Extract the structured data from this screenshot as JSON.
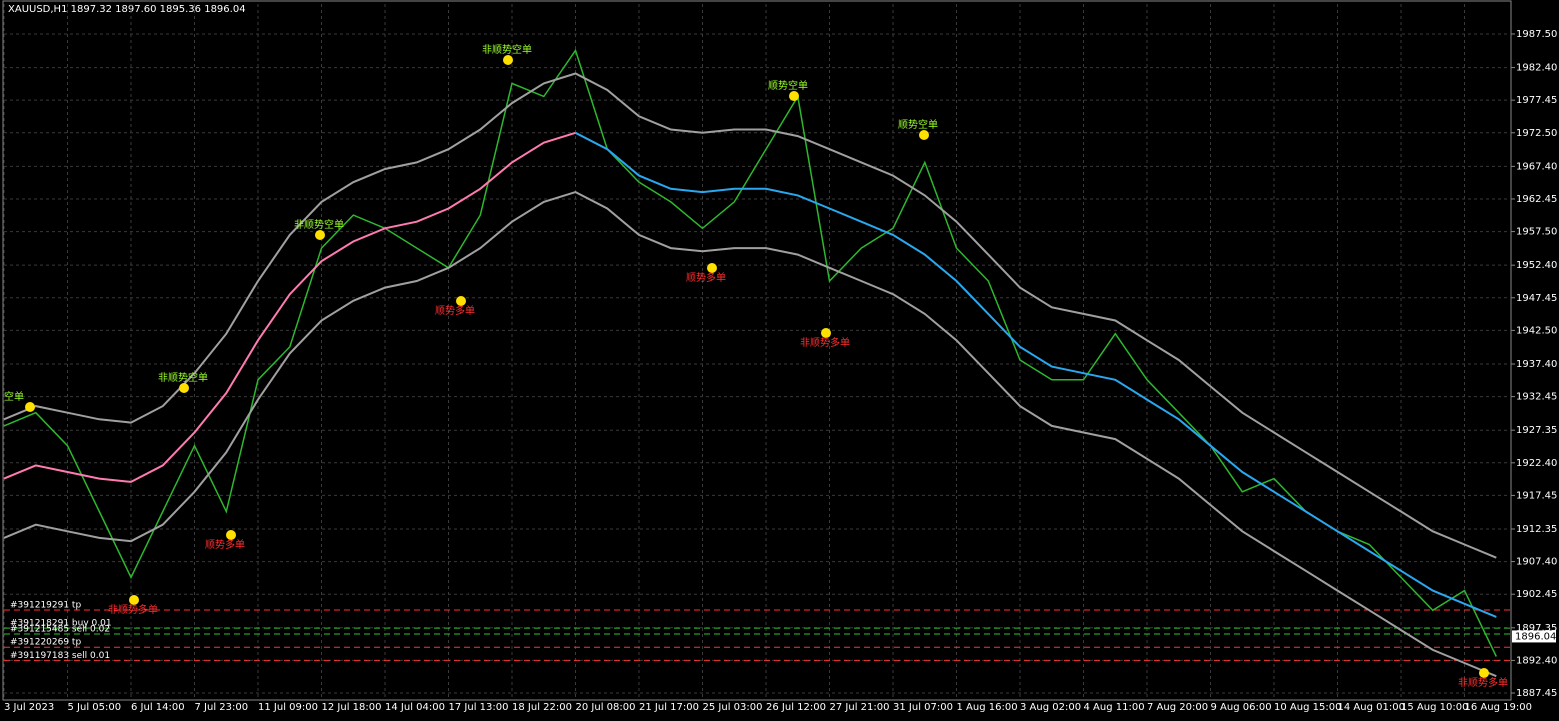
{
  "chart_data": {
    "type": "line",
    "title": "XAUUSD,H1  1897.32 1897.60 1895.36 1896.04",
    "categories": [
      "3 Jul 2023",
      null,
      "5 Jul 05:00",
      null,
      "6 Jul 14:00",
      null,
      "7 Jul 23:00",
      null,
      "11 Jul 09:00",
      null,
      "12 Jul 18:00",
      null,
      "14 Jul 04:00",
      null,
      "17 Jul 13:00",
      null,
      "18 Jul 22:00",
      null,
      "20 Jul 08:00",
      null,
      "21 Jul 17:00",
      null,
      "25 Jul 03:00",
      null,
      "26 Jul 12:00",
      null,
      "27 Jul 21:00",
      null,
      "31 Jul 07:00",
      null,
      "1 Aug 16:00",
      null,
      "3 Aug 02:00",
      null,
      "4 Aug 11:00",
      null,
      "7 Aug 20:00",
      null,
      "9 Aug 06:00",
      null,
      "10 Aug 15:00",
      null,
      "14 Aug 01:00",
      null,
      "15 Aug 10:00",
      null,
      "16 Aug 19:00",
      null
    ],
    "series": [
      {
        "color": "#2db82d",
        "values": [
          1928,
          1930,
          1925,
          1915,
          1905,
          1915,
          1925,
          1915,
          1935,
          1940,
          1955,
          1960,
          1958,
          1955,
          1952,
          1960,
          1980,
          1978,
          1985,
          1970,
          1965,
          1962,
          1958,
          1962,
          1970,
          1978,
          1950,
          1955,
          1958,
          1968,
          1955,
          1950,
          1938,
          1935,
          1935,
          1942,
          1935,
          1930,
          1925,
          1918,
          1920,
          1915,
          1912,
          1910,
          1905,
          1900,
          1903,
          1893
        ]
      },
      {
        "color": "#a0a0a0",
        "values": [
          1929,
          1931,
          1930,
          1929,
          1928.5,
          1931,
          1936,
          1942,
          1950,
          1957,
          1962,
          1965,
          1967,
          1968,
          1970,
          1973,
          1977,
          1980,
          1981.5,
          1979,
          1975,
          1973,
          1972.5,
          1973,
          1973,
          1972,
          1970,
          1968,
          1966,
          1963,
          1959,
          1954,
          1949,
          1946,
          1945,
          1944,
          1941,
          1938,
          1934,
          1930,
          1927,
          1924,
          1921,
          1918,
          1915,
          1912,
          1910,
          1908
        ]
      },
      {
        "color": "#a0a0a0",
        "values": [
          1911,
          1913,
          1912,
          1911,
          1910.5,
          1913,
          1918,
          1924,
          1932,
          1939,
          1944,
          1947,
          1949,
          1950,
          1952,
          1955,
          1959,
          1962,
          1963.5,
          1961,
          1957,
          1955,
          1954.5,
          1955,
          1955,
          1954,
          1952,
          1950,
          1948,
          1945,
          1941,
          1936,
          1931,
          1928,
          1927,
          1926,
          1923,
          1920,
          1916,
          1912,
          1909,
          1906,
          1903,
          1900,
          1897,
          1894,
          1892,
          1890
        ]
      },
      {
        "color": "#ff7bb0",
        "values": [
          1920,
          1922,
          1921,
          1920,
          1919.5,
          1922,
          1927,
          1933,
          1941,
          1948,
          1953,
          1956,
          1958,
          1959,
          1961,
          1964,
          1968,
          1971,
          1972.5,
          null,
          null,
          null,
          null,
          null,
          null,
          null,
          null,
          null,
          null,
          null,
          null,
          null,
          null,
          null,
          null,
          null,
          null,
          null,
          null,
          null,
          null,
          null,
          null,
          null,
          null,
          null,
          null,
          null
        ]
      },
      {
        "color": "#29a8f0",
        "values": [
          null,
          null,
          null,
          null,
          null,
          null,
          null,
          null,
          null,
          null,
          null,
          null,
          null,
          null,
          null,
          null,
          null,
          null,
          1972.5,
          1970,
          1966,
          1964,
          1963.5,
          1964,
          1964,
          1963,
          1961,
          1959,
          1957,
          1954,
          1950,
          1945,
          1940,
          1937,
          1936,
          1935,
          1932,
          1929,
          1925,
          1921,
          1918,
          1915,
          1912,
          1909,
          1906,
          1903,
          1901,
          1899
        ]
      }
    ],
    "ylim": [
      1886.39,
      1992.05
    ],
    "yticks": [
      {
        "value": 1887.45,
        "label": "1887.45"
      },
      {
        "value": 1892.4,
        "label": "1892.40"
      },
      {
        "value": 1897.35,
        "label": "1897.35"
      },
      {
        "value": 1902.45,
        "label": "1902.45"
      },
      {
        "value": 1907.4,
        "label": "1907.40"
      },
      {
        "value": 1912.35,
        "label": "1912.35"
      },
      {
        "value": 1917.45,
        "label": "1917.45"
      },
      {
        "value": 1922.4,
        "label": "1922.40"
      },
      {
        "value": 1927.35,
        "label": "1927.35"
      },
      {
        "value": 1932.45,
        "label": "1932.45"
      },
      {
        "value": 1937.4,
        "label": "1937.40"
      },
      {
        "value": 1942.5,
        "label": "1942.50"
      },
      {
        "value": 1947.45,
        "label": "1947.45"
      },
      {
        "value": 1952.4,
        "label": "1952.40"
      },
      {
        "value": 1957.5,
        "label": "1957.50"
      },
      {
        "value": 1962.45,
        "label": "1962.45"
      },
      {
        "value": 1967.4,
        "label": "1967.40"
      },
      {
        "value": 1972.5,
        "label": "1972.50"
      },
      {
        "value": 1977.45,
        "label": "1977.45"
      },
      {
        "value": 1982.4,
        "label": "1982.40"
      },
      {
        "value": 1987.5,
        "label": "1987.50"
      }
    ],
    "grid": true,
    "current_price": {
      "value": 1896.04,
      "label": "1896.04"
    },
    "order_lines": [
      {
        "label": "#391219291 tp",
        "value": 1900.05,
        "color": "#ff3030"
      },
      {
        "label": "#391218291 buy 0.01",
        "value": 1897.3,
        "color": "#30c030"
      },
      {
        "label": "#391215485 sell 0.02",
        "value": 1896.4,
        "color": "#30c030"
      },
      {
        "label": "#391220269 tp",
        "value": 1894.4,
        "color": "#ff3030"
      },
      {
        "label": "#391197183 sell 0.01",
        "value": 1892.4,
        "color": "#ff3030"
      }
    ],
    "annotations": [
      {
        "text": "非顺势多单",
        "color": "#ff3030"
      },
      {
        "text": "顺势多单",
        "color": "#ff3030"
      },
      {
        "text": "非顺势空单",
        "color": "#9cff2e"
      },
      {
        "text": "非顺势空单",
        "color": "#9cff2e"
      },
      {
        "text": "顺势多单",
        "color": "#ff3030"
      },
      {
        "text": "非顺势空单",
        "color": "#9cff2e"
      },
      {
        "text": "顺势多单",
        "color": "#ff3030"
      },
      {
        "text": "非顺势多单",
        "color": "#ff3030"
      },
      {
        "text": "顺势空单",
        "color": "#9cff2e"
      },
      {
        "text": "顺势空单",
        "color": "#9cff2e"
      },
      {
        "text": "非顺势多单",
        "color": "#ff3030"
      },
      {
        "text": "空单",
        "color": "#9cff2e"
      }
    ]
  }
}
